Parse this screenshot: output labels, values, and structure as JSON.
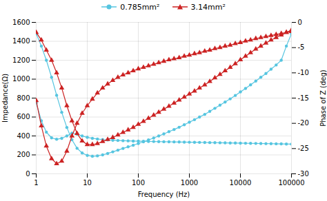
{
  "chart_data": {
    "type": "line",
    "xlabel": "Frequency (Hz)",
    "ylabel": "Impedance(Ω)",
    "y2label": "Phase of Z (deg)",
    "log": "x",
    "grid": true,
    "legend": "top",
    "xlim": [
      1,
      100000
    ],
    "xticks": [
      1,
      10,
      100,
      1000,
      10000,
      100000
    ],
    "ylim": [
      0,
      1600
    ],
    "yticks": [
      0,
      200,
      400,
      600,
      800,
      1000,
      1200,
      1400,
      1600
    ],
    "y2lim": [
      -30,
      0
    ],
    "y2ticks": [
      -30,
      -25,
      -20,
      -15,
      -10,
      -5,
      0
    ],
    "x": [
      1,
      1.26,
      1.58,
      2.0,
      2.51,
      3.16,
      3.98,
      5.01,
      6.31,
      7.94,
      10.0,
      12.6,
      15.8,
      20.0,
      25.1,
      31.6,
      39.8,
      50.1,
      63.1,
      79.4,
      100,
      126,
      158,
      200,
      251,
      316,
      398,
      501,
      631,
      794,
      1000,
      1260,
      1580,
      2000,
      2510,
      3160,
      3980,
      5010,
      6310,
      7940,
      10000,
      12600,
      15800,
      20000,
      25100,
      31600,
      39800,
      50100,
      63100,
      79400,
      100000
    ],
    "series": [
      {
        "name": "0.785mm²",
        "color": "#56c5e0",
        "marker": "circle",
        "axis": "y",
        "values": [
          1480,
          1350,
          1200,
          1020,
          830,
          650,
          490,
          360,
          270,
          220,
          195,
          185,
          190,
          200,
          215,
          232,
          250,
          268,
          285,
          302,
          320,
          338,
          358,
          378,
          400,
          422,
          445,
          468,
          492,
          518,
          545,
          572,
          600,
          628,
          660,
          692,
          725,
          758,
          792,
          828,
          865,
          902,
          940,
          980,
          1020,
          1060,
          1105,
          1150,
          1200,
          1350,
          1480
        ]
      },
      {
        "name": "0.785mm²",
        "color": "#56c5e0",
        "marker": "circle",
        "axis": "y",
        "values": [
          750,
          560,
          440,
          380,
          365,
          375,
          400,
          430,
          420,
          400,
          385,
          375,
          368,
          362,
          358,
          355,
          352,
          350,
          348,
          346,
          345,
          344,
          342,
          341,
          340,
          339,
          338,
          337,
          336,
          335,
          334,
          333,
          332,
          331,
          330,
          329,
          328,
          327,
          326,
          325,
          324,
          323,
          322,
          321,
          320,
          319,
          318,
          317,
          316,
          315,
          314
        ]
      },
      {
        "name": "3.14mm²",
        "color": "#cc2222",
        "marker": "triangle",
        "axis": "y2",
        "values": [
          -2.0,
          -3.5,
          -5.5,
          -7.5,
          -10.0,
          -13.0,
          -16.5,
          -19.5,
          -22.0,
          -23.5,
          -24.2,
          -24.2,
          -24.0,
          -23.6,
          -23.2,
          -22.8,
          -22.3,
          -21.8,
          -21.3,
          -20.8,
          -20.2,
          -19.6,
          -19.0,
          -18.4,
          -17.8,
          -17.2,
          -16.6,
          -16.0,
          -15.4,
          -14.8,
          -14.2,
          -13.6,
          -13.0,
          -12.4,
          -11.7,
          -11.0,
          -10.3,
          -9.6,
          -8.9,
          -8.2,
          -7.4,
          -6.7,
          -6.0,
          -5.3,
          -4.7,
          -4.1,
          -3.5,
          -3.0,
          -2.5,
          -2.0,
          -1.5
        ]
      },
      {
        "name": "3.14mm²",
        "color": "#cc2222",
        "marker": "triangle",
        "axis": "y2",
        "values": [
          -15.5,
          -20.5,
          -24.5,
          -27.0,
          -28.0,
          -27.5,
          -25.5,
          -22.5,
          -20.0,
          -18.0,
          -16.5,
          -15.2,
          -14.0,
          -13.0,
          -12.2,
          -11.5,
          -10.9,
          -10.4,
          -10.0,
          -9.6,
          -9.2,
          -8.9,
          -8.6,
          -8.3,
          -8.0,
          -7.7,
          -7.4,
          -7.2,
          -7.0,
          -6.7,
          -6.5,
          -6.2,
          -6.0,
          -5.7,
          -5.5,
          -5.2,
          -5.0,
          -4.7,
          -4.5,
          -4.2,
          -4.0,
          -3.7,
          -3.5,
          -3.2,
          -3.0,
          -2.8,
          -2.6,
          -2.4,
          -2.2,
          -2.0,
          -1.8
        ]
      }
    ]
  }
}
